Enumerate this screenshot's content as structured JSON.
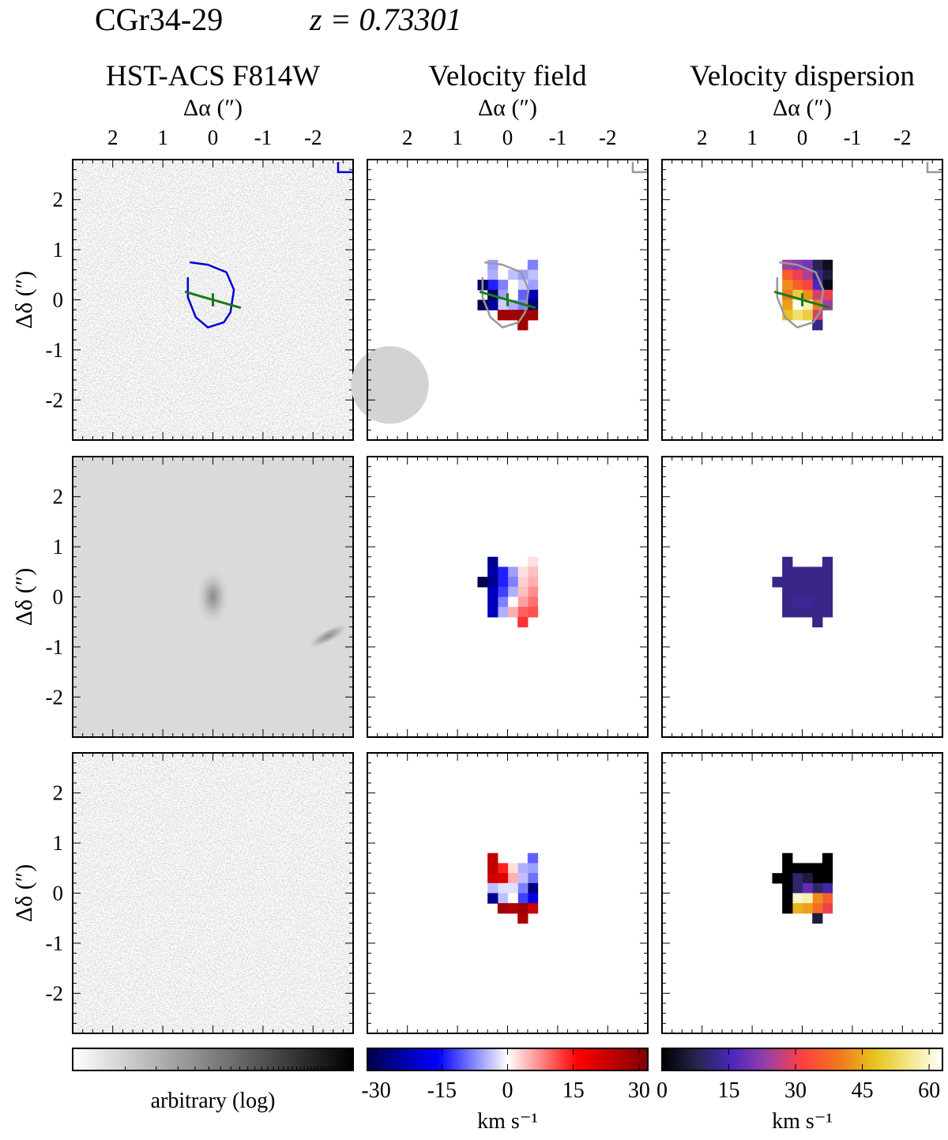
{
  "header": {
    "object_name": "CGr34-29",
    "redshift_label": "z = 0.73301"
  },
  "columns": [
    {
      "title": "HST-ACS F814W",
      "xlabel": "Δα (″)"
    },
    {
      "title": "Velocity field",
      "xlabel": "Δα (″)"
    },
    {
      "title": "Velocity dispersion",
      "xlabel": "Δα (″)"
    }
  ],
  "ylabel": "Δδ (″)",
  "chart_data": {
    "type": "heatmap",
    "x_ticks": [
      "2",
      "1",
      "0",
      "-1",
      "-2"
    ],
    "x_tick_values": [
      2,
      1,
      0,
      -1,
      -2
    ],
    "y_ticks": [
      "2",
      "1",
      "0",
      "-1",
      "-2"
    ],
    "y_tick_values": [
      2,
      1,
      0,
      -1,
      -2
    ],
    "xlim": [
      2.8,
      -2.8
    ],
    "ylim": [
      -2.8,
      2.8
    ],
    "pixel_size_arcsec": 0.2,
    "psf": {
      "center": [
        2.35,
        -1.7
      ],
      "fwhm_arcsec": 1.55,
      "color": "#d3d3d3"
    },
    "kinematic_axis": {
      "center": [
        0,
        0
      ],
      "position_angle_deg": 74,
      "half_length_arcsec": 0.58,
      "color": "#1a7a1a"
    },
    "hst_contour_color": "#0000cc",
    "overlay_contour_color": "#999999",
    "rows": [
      "observed",
      "model",
      "residual"
    ],
    "colorbars": [
      {
        "label": "arbitrary (log)",
        "ticks": [],
        "cmap": "greys"
      },
      {
        "label": "km s⁻¹",
        "ticks": [
          "-30",
          "-15",
          "0",
          "15",
          "30"
        ],
        "range": [
          -32,
          32
        ],
        "cmap": "seismic"
      },
      {
        "label": "km s⁻¹",
        "ticks": [
          "0",
          "15",
          "30",
          "45",
          "60"
        ],
        "range": [
          0,
          63
        ],
        "cmap": "cmrmap"
      }
    ],
    "velocity_pixel_columns": [
      -0.5,
      -0.3,
      -0.1,
      0.1,
      0.3,
      0.5
    ],
    "velocity_pixel_rows": [
      0.7,
      0.5,
      0.3,
      0.1,
      -0.1,
      -0.3,
      -0.5
    ],
    "velocity_field": {
      "observed": [
        [
          -8,
          null,
          null,
          null,
          -6,
          null
        ],
        [
          -4,
          -6,
          -4,
          0,
          -5,
          null
        ],
        [
          -6,
          -3,
          0,
          -8,
          -14,
          -30
        ],
        [
          -22,
          -10,
          0,
          -6,
          -30,
          null
        ],
        [
          -28,
          -8,
          -5,
          -3,
          -25,
          -32
        ],
        [
          28,
          28,
          28,
          28,
          null,
          null
        ],
        [
          null,
          28,
          null,
          null,
          null,
          null
        ]
      ],
      "model": [
        [
          2,
          null,
          null,
          null,
          -26,
          null
        ],
        [
          4,
          2,
          -6,
          -14,
          -24,
          null
        ],
        [
          5,
          3,
          -8,
          -14,
          -26,
          -32
        ],
        [
          7,
          4,
          -5,
          -12,
          -22,
          null
        ],
        [
          9,
          6,
          0,
          -8,
          -22,
          null
        ],
        [
          11,
          10,
          5,
          -5,
          -22,
          null
        ],
        [
          null,
          13,
          null,
          null,
          null,
          null
        ]
      ],
      "residual": [
        [
          -10,
          null,
          null,
          null,
          24,
          null
        ],
        [
          -6,
          -5,
          2,
          14,
          24,
          null
        ],
        [
          -9,
          -4,
          5,
          20,
          22,
          null
        ],
        [
          -28,
          -8,
          -2,
          -2,
          -4,
          null
        ],
        [
          -18,
          -12,
          0,
          -4,
          -26,
          null
        ],
        [
          22,
          28,
          26,
          28,
          null,
          null
        ],
        [
          null,
          27,
          null,
          null,
          null,
          null
        ]
      ]
    },
    "velocity_dispersion": {
      "observed": [
        [
          3,
          8,
          20,
          22,
          24,
          null
        ],
        [
          6,
          12,
          25,
          30,
          36,
          null
        ],
        [
          2,
          16,
          32,
          36,
          42,
          null
        ],
        [
          30,
          28,
          42,
          50,
          40,
          null
        ],
        [
          24,
          40,
          58,
          62,
          44,
          null
        ],
        [
          null,
          28,
          50,
          54,
          48,
          null
        ],
        [
          null,
          12,
          null,
          null,
          null,
          null
        ]
      ],
      "model": [
        [
          12,
          null,
          null,
          null,
          12,
          null
        ],
        [
          12,
          12,
          12,
          12,
          12,
          null
        ],
        [
          12,
          12,
          12,
          12,
          12,
          12
        ],
        [
          12,
          12,
          12,
          12,
          12,
          null
        ],
        [
          12,
          12,
          13,
          13,
          12,
          null
        ],
        [
          12,
          12,
          12,
          12,
          12,
          null
        ],
        [
          null,
          12,
          null,
          null,
          null,
          null
        ]
      ],
      "residual": [
        [
          0,
          null,
          null,
          null,
          0,
          null
        ],
        [
          0,
          0,
          0,
          0,
          0,
          null
        ],
        [
          0,
          0,
          6,
          10,
          0,
          0
        ],
        [
          14,
          10,
          18,
          10,
          0,
          null
        ],
        [
          36,
          42,
          58,
          60,
          0,
          null
        ],
        [
          30,
          38,
          44,
          46,
          0,
          null
        ],
        [
          null,
          6,
          null,
          null,
          null,
          null
        ]
      ]
    }
  }
}
